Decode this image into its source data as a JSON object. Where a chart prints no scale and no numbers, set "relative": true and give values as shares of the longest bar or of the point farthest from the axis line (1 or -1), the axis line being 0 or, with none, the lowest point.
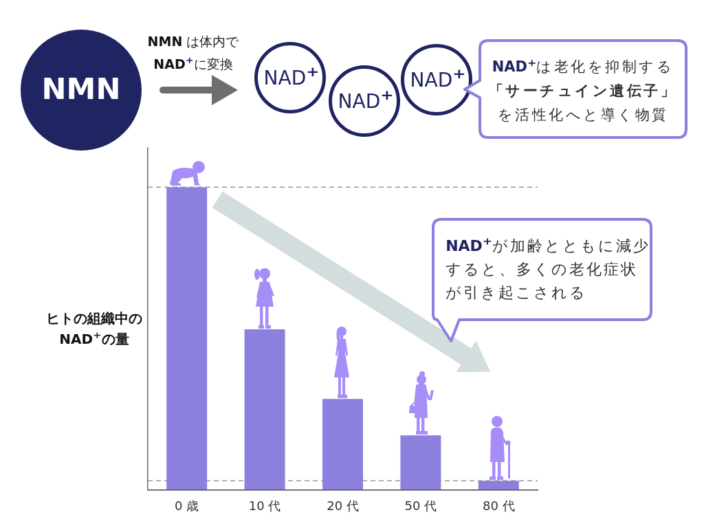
{
  "chart_data": {
    "type": "bar",
    "categories": [
      "0 歳",
      "10 代",
      "20 代",
      "50 代",
      "80 代"
    ],
    "values": [
      1,
      0.53,
      0.3,
      0.18,
      0.03
    ],
    "color": "#8b80de",
    "relative": true,
    "ylabel": "ヒトの組織中のNAD⁺の量",
    "ref_lines": [
      {
        "axis": "y",
        "value": 1,
        "color": "#999999",
        "line_style": "dashed"
      },
      {
        "axis": "y",
        "value": 0.03,
        "color": "#999999",
        "line_style": "dashed"
      }
    ],
    "annotations": [
      "NMN",
      "NMN は体内でNAD⁺に変換",
      "NAD⁺",
      "NAD⁺",
      "NAD⁺",
      "NAD⁺は老化を抑制する「サーチュイン遺伝子」を活性化へと導く物質",
      "NAD⁺が加齢とともに減少すると、多くの老化症状が引き起こされる"
    ]
  }
}
